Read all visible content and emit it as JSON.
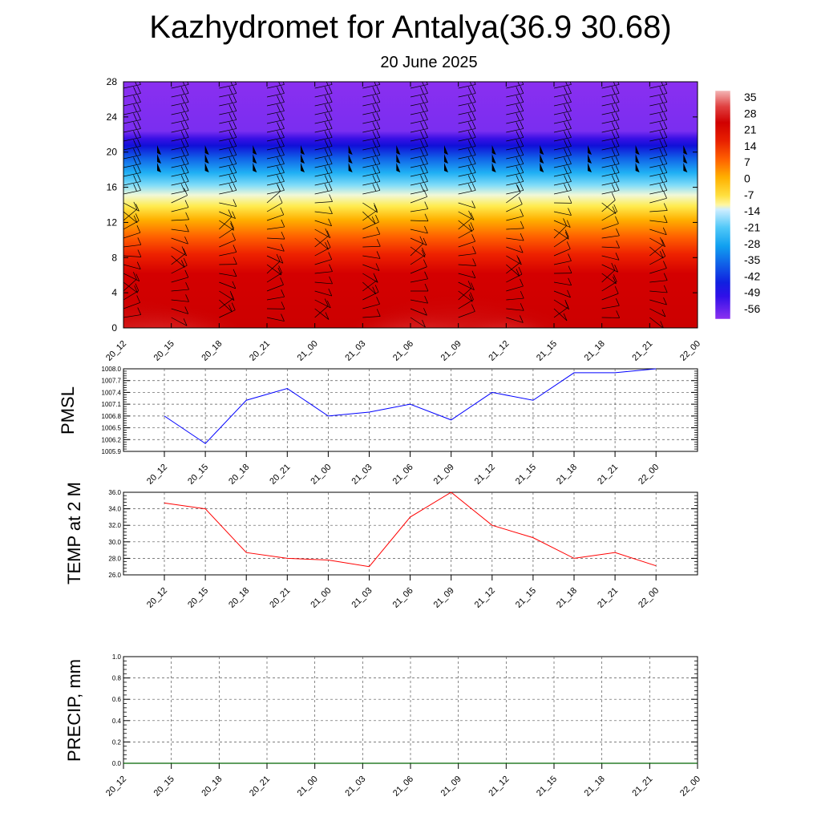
{
  "header": {
    "title": "Kazhydromet for Antalya(36.9 30.68)",
    "subtitle": "20 June 2025"
  },
  "chart_data": [
    {
      "type": "heatmap",
      "name": "temperature-wind-profile",
      "x_ticks": [
        "20_12",
        "20_15",
        "20_18",
        "20_21",
        "21_00",
        "21_03",
        "21_06",
        "21_09",
        "21_12",
        "21_15",
        "21_18",
        "21_21",
        "22_00"
      ],
      "y_ticks": [
        0,
        4,
        8,
        12,
        16,
        20,
        24,
        28
      ],
      "ylim": [
        0,
        28
      ],
      "colorbar": {
        "labels": [
          35,
          28,
          21,
          14,
          7,
          0,
          -7,
          -14,
          -21,
          -28,
          -35,
          -42,
          -49,
          -56
        ],
        "range": [
          -60,
          38
        ]
      },
      "surface_temperature": [
        36,
        34,
        27,
        29,
        27,
        26,
        33,
        37,
        32,
        29,
        25,
        29,
        26
      ],
      "wind_barbs": "shown at every time step and level"
    },
    {
      "type": "line",
      "name": "pmsl",
      "ylabel": "PMSL",
      "x": [
        "20_12",
        "20_15",
        "20_18",
        "20_21",
        "21_00",
        "21_03",
        "21_06",
        "21_09",
        "21_12",
        "21_15",
        "21_18",
        "21_21",
        "22_00"
      ],
      "ylim": [
        1005.9,
        1008.0
      ],
      "y_ticks": [
        "1005.9",
        "1006.2",
        "1006.5",
        "1006.8",
        "1007.1",
        "1007.4",
        "1007.7",
        "1008.0"
      ],
      "series": [
        {
          "values": [
            1006.8,
            1006.1,
            1007.2,
            1007.5,
            1006.8,
            1006.9,
            1007.1,
            1006.7,
            1007.4,
            1007.2,
            1007.9,
            1007.9,
            1008.0
          ],
          "color": "#0000ff"
        }
      ]
    },
    {
      "type": "line",
      "name": "temp-2m",
      "ylabel": "TEMP at 2 M",
      "x": [
        "20_12",
        "20_15",
        "20_18",
        "20_21",
        "21_00",
        "21_03",
        "21_06",
        "21_09",
        "21_12",
        "21_15",
        "21_18",
        "21_21",
        "22_00"
      ],
      "ylim": [
        26.0,
        36.0
      ],
      "y_ticks": [
        "26.0",
        "28.0",
        "30.0",
        "32.0",
        "34.0",
        "36.0"
      ],
      "series": [
        {
          "values": [
            34.7,
            34.0,
            28.7,
            28.0,
            27.8,
            27.0,
            33.0,
            36.0,
            32.0,
            30.5,
            28.0,
            28.7,
            27.1
          ],
          "color": "#ff0000"
        }
      ]
    },
    {
      "type": "line",
      "name": "precip",
      "ylabel": "PRECIP, mm",
      "x": [
        "20_12",
        "20_15",
        "20_18",
        "20_21",
        "21_00",
        "21_03",
        "21_06",
        "21_09",
        "21_12",
        "21_15",
        "21_18",
        "21_21",
        "22_00"
      ],
      "ylim": [
        0.0,
        1.0
      ],
      "y_ticks": [
        "0.0",
        "0.2",
        "0.4",
        "0.6",
        "0.8",
        "1.0"
      ],
      "series": [
        {
          "values": [
            0,
            0,
            0,
            0,
            0,
            0,
            0,
            0,
            0,
            0,
            0,
            0,
            0
          ],
          "color": "#006400"
        }
      ]
    }
  ]
}
